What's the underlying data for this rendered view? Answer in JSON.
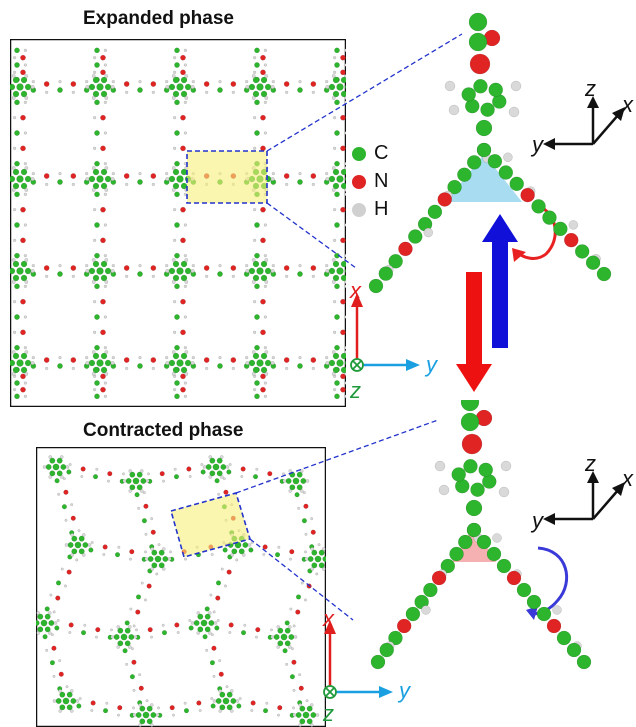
{
  "titles": {
    "expanded": "Expanded phase",
    "contracted": "Contracted phase"
  },
  "legend": [
    {
      "symbol": "C",
      "color": "#2db52d"
    },
    {
      "symbol": "N",
      "color": "#e02424"
    },
    {
      "symbol": "H",
      "color": "#d0d0d0"
    }
  ],
  "axes_2d": {
    "x": "x",
    "y": "y",
    "z": "z"
  },
  "axes_3d": {
    "x": "x",
    "y": "y",
    "z": "z"
  },
  "colors": {
    "carbon": "#2db52d",
    "nitrogen": "#e02424",
    "hydrogen": "#d9d9d9",
    "x_axis": "#e01e1e",
    "y_axis": "#1aa0e0",
    "z_axis": "#1f9a3a",
    "highlight": "#f6f07a",
    "expanded_angle": "#9fd8f0",
    "contracted_angle": "#f4a8a8",
    "arrow_down": "#ee1111",
    "arrow_up": "#1010d8",
    "zoom_lines": "#2233cc"
  }
}
